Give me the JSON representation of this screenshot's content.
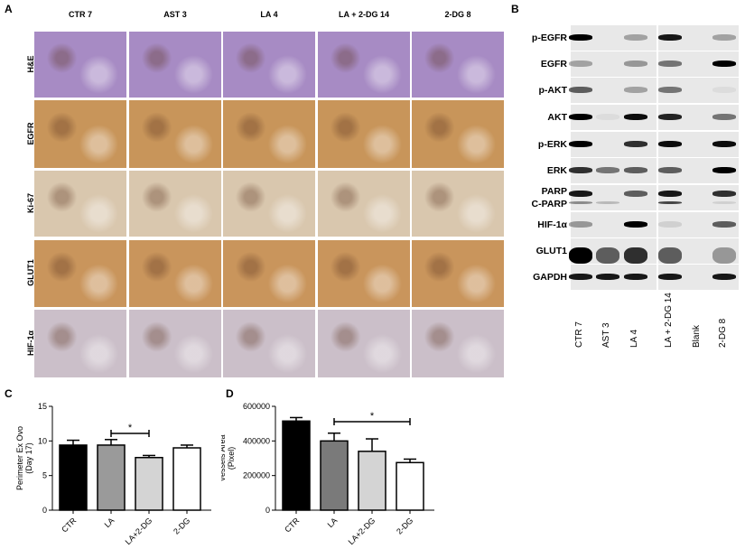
{
  "panel_a": {
    "label": "A",
    "columns": [
      "CTR 7",
      "AST 3",
      "LA 4",
      "LA + 2-DG 14",
      "2-DG 8"
    ],
    "rows": [
      {
        "label": "H&E",
        "color": "#a78bc4"
      },
      {
        "label": "EGFR",
        "color": "#c8955a"
      },
      {
        "label": "Ki-67",
        "color": "#d9c7ae"
      },
      {
        "label": "GLUT1",
        "color": "#c9955c"
      },
      {
        "label": "HIF-1α",
        "color": "#cbbfc9"
      }
    ]
  },
  "panel_b": {
    "label": "B",
    "lanes": [
      "CTR 7",
      "AST 3",
      "LA 4",
      "LA + 2-DG 14",
      "Blank",
      "2-DG 8"
    ],
    "blots": [
      {
        "label": "p-EGFR",
        "intensity": [
          1,
          0,
          0.3,
          0.9,
          0,
          0.3
        ]
      },
      {
        "label": "EGFR",
        "intensity": [
          0.3,
          0,
          0.35,
          0.5,
          0,
          1
        ]
      },
      {
        "label": "p-AKT",
        "intensity": [
          0.6,
          0,
          0.3,
          0.5,
          0,
          0.05
        ]
      },
      {
        "label": "AKT",
        "intensity": [
          1,
          0.05,
          0.95,
          0.85,
          0,
          0.5
        ]
      },
      {
        "label": "p-ERK",
        "intensity": [
          1,
          0,
          0.8,
          0.95,
          0,
          0.95
        ]
      },
      {
        "label": "ERK",
        "intensity": [
          0.8,
          0.5,
          0.6,
          0.6,
          0,
          1
        ]
      },
      {
        "label": "PARP",
        "label2": "C-PARP",
        "intensity": [
          0.9,
          0,
          0.6,
          0.9,
          0,
          0.8
        ],
        "intensity2": [
          0.4,
          0.2,
          0,
          0.7,
          0,
          0.1
        ]
      },
      {
        "label": "HIF-1α",
        "intensity": [
          0.35,
          0,
          1,
          0.1,
          0,
          0.6
        ]
      },
      {
        "label": "GLUT1",
        "intensity": [
          1,
          0.6,
          0.8,
          0.6,
          0,
          0.35
        ]
      },
      {
        "label": "GAPDH",
        "intensity": [
          0.9,
          0.9,
          0.9,
          0.9,
          0,
          0.9
        ]
      }
    ]
  },
  "chart_data": [
    {
      "panel": "C",
      "type": "bar",
      "categories": [
        "CTR",
        "LA",
        "LA+2-DG",
        "2-DG"
      ],
      "values": [
        9.4,
        9.4,
        7.6,
        9.0
      ],
      "errors": [
        0.7,
        0.8,
        0.3,
        0.4
      ],
      "colors": [
        "#000000",
        "#9a9a9a",
        "#d4d4d4",
        "#ffffff"
      ],
      "ylabel_1": "Perimeter Ex Ovo",
      "ylabel_2": "(Day 17)",
      "ylim": [
        0,
        15
      ],
      "yticks": [
        "0",
        "5",
        "10",
        "15"
      ],
      "yvals": [
        0,
        5,
        10,
        15
      ],
      "significance": {
        "from": "LA",
        "to": "LA+2-DG",
        "mark": "*"
      }
    },
    {
      "panel": "D",
      "type": "bar",
      "categories": [
        "CTR",
        "LA",
        "LA+2-DG",
        "2-DG"
      ],
      "values": [
        515000,
        400000,
        340000,
        275000
      ],
      "errors": [
        20000,
        45000,
        72000,
        20000
      ],
      "colors": [
        "#000000",
        "#7a7a7a",
        "#d4d4d4",
        "#ffffff"
      ],
      "ylabel_1": "Vessels Area",
      "ylabel_2": "(Pixel)",
      "ylim": [
        0,
        600000
      ],
      "yticks": [
        "0",
        "200000",
        "400000",
        "600000"
      ],
      "yvals": [
        0,
        200000,
        400000,
        600000
      ],
      "significance": {
        "from": "LA",
        "to": "2-DG",
        "mark": "*"
      }
    }
  ]
}
